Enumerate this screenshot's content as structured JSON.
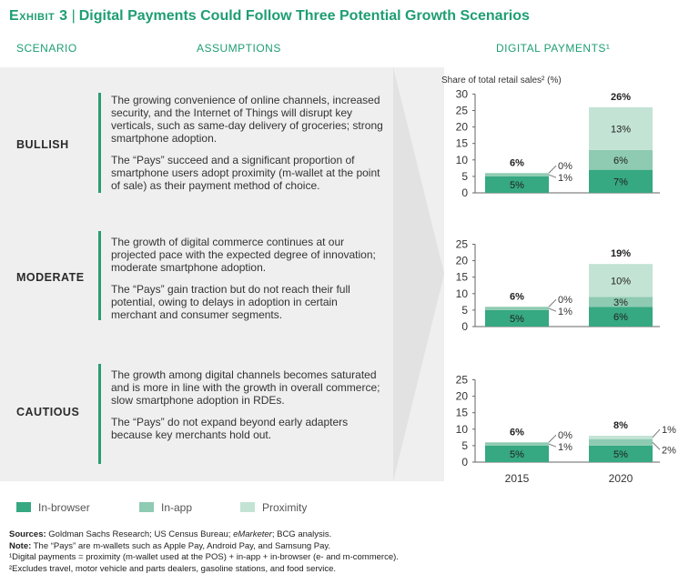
{
  "header": {
    "exhibit": "Exhibit 3",
    "title": "Digital Payments Could Follow Three Potential Growth Scenarios"
  },
  "columns": {
    "scenario": "SCENARIO",
    "assumptions": "ASSUMPTIONS",
    "digital": "DIGITAL PAYMENTS¹"
  },
  "scenarios": [
    {
      "name": "BULLISH",
      "p1": "The growing convenience of online channels, increased security, and the Internet of Things will disrupt key verticals, such as same-day delivery of groceries; strong smartphone adoption.",
      "p2": "The “Pays” succeed and a significant proportion of smartphone users adopt proximity (m-wallet at the point of sale) as their payment method of choice."
    },
    {
      "name": "MODERATE",
      "p1": "The growth of digital commerce continues at our projected pace with the expected degree of innovation; moderate smartphone adoption.",
      "p2": "The “Pays” gain traction but do not reach their full potential, owing to delays in adoption in certain merchant and consumer segments."
    },
    {
      "name": "CAUTIOUS",
      "p1": "The growth among digital channels becomes saturated and is more in line with the growth in overall commerce; slow smartphone adoption in RDEs.",
      "p2": "The “Pays” do not expand beyond early adapters because key merchants hold out."
    }
  ],
  "legend": [
    {
      "label": "In-browser",
      "color": "#36a882"
    },
    {
      "label": "In-app",
      "color": "#8ecbb2"
    },
    {
      "label": "Proximity",
      "color": "#c3e3d5"
    }
  ],
  "colors": {
    "accent": "#1e9e72",
    "in_browser": "#36a882",
    "in_app": "#8ecbb2",
    "proximity": "#c3e3d5"
  },
  "footnotes": {
    "sources_label": "Sources:",
    "sources_text": " Goldman Sachs Research; US Census Bureau; ",
    "sources_italic": "eMarketer",
    "sources_end": "; BCG analysis.",
    "note_label": "Note:",
    "note_text": " The “Pays” are m-wallets such as Apple Pay, Android Pay, and Samsung Pay.",
    "fn1": "¹Digital payments = proximity (m-wallet used at the POS) + in-app + in-browser (e- and m-commerce).",
    "fn2": "²Excludes travel, motor vehicle and parts dealers, gasoline stations, and food service."
  },
  "chart_data": [
    {
      "type": "bar",
      "stacked": true,
      "scenario": "BULLISH",
      "ylabel": "Share of total retail sales² (%)",
      "ylim": [
        0,
        30
      ],
      "yticks": [
        0,
        5,
        10,
        15,
        20,
        25,
        30
      ],
      "categories": [
        "2015",
        "2020"
      ],
      "series": [
        {
          "name": "In-browser",
          "values": [
            5,
            7
          ],
          "labels": [
            "5%",
            "7%"
          ]
        },
        {
          "name": "In-app",
          "values": [
            1,
            6
          ],
          "labels": [
            "1%",
            "6%"
          ]
        },
        {
          "name": "Proximity",
          "values": [
            0,
            13
          ],
          "labels": [
            "0%",
            "13%"
          ]
        }
      ],
      "totals": [
        "6%",
        "26%"
      ],
      "show_xlabels": false
    },
    {
      "type": "bar",
      "stacked": true,
      "scenario": "MODERATE",
      "ylabel": "",
      "ylim": [
        0,
        25
      ],
      "yticks": [
        0,
        5,
        10,
        15,
        20,
        25
      ],
      "categories": [
        "2015",
        "2020"
      ],
      "series": [
        {
          "name": "In-browser",
          "values": [
            5,
            6
          ],
          "labels": [
            "5%",
            "6%"
          ]
        },
        {
          "name": "In-app",
          "values": [
            1,
            3
          ],
          "labels": [
            "1%",
            "3%"
          ]
        },
        {
          "name": "Proximity",
          "values": [
            0,
            10
          ],
          "labels": [
            "0%",
            "10%"
          ]
        }
      ],
      "totals": [
        "6%",
        "19%"
      ],
      "show_xlabels": false
    },
    {
      "type": "bar",
      "stacked": true,
      "scenario": "CAUTIOUS",
      "ylabel": "",
      "ylim": [
        0,
        25
      ],
      "yticks": [
        0,
        5,
        10,
        15,
        20,
        25
      ],
      "categories": [
        "2015",
        "2020"
      ],
      "series": [
        {
          "name": "In-browser",
          "values": [
            5,
            5
          ],
          "labels": [
            "5%",
            "5%"
          ]
        },
        {
          "name": "In-app",
          "values": [
            1,
            2
          ],
          "labels": [
            "1%",
            "2%"
          ]
        },
        {
          "name": "Proximity",
          "values": [
            0,
            1
          ],
          "labels": [
            "0%",
            "1%"
          ]
        }
      ],
      "totals": [
        "6%",
        "8%"
      ],
      "show_xlabels": true
    }
  ]
}
